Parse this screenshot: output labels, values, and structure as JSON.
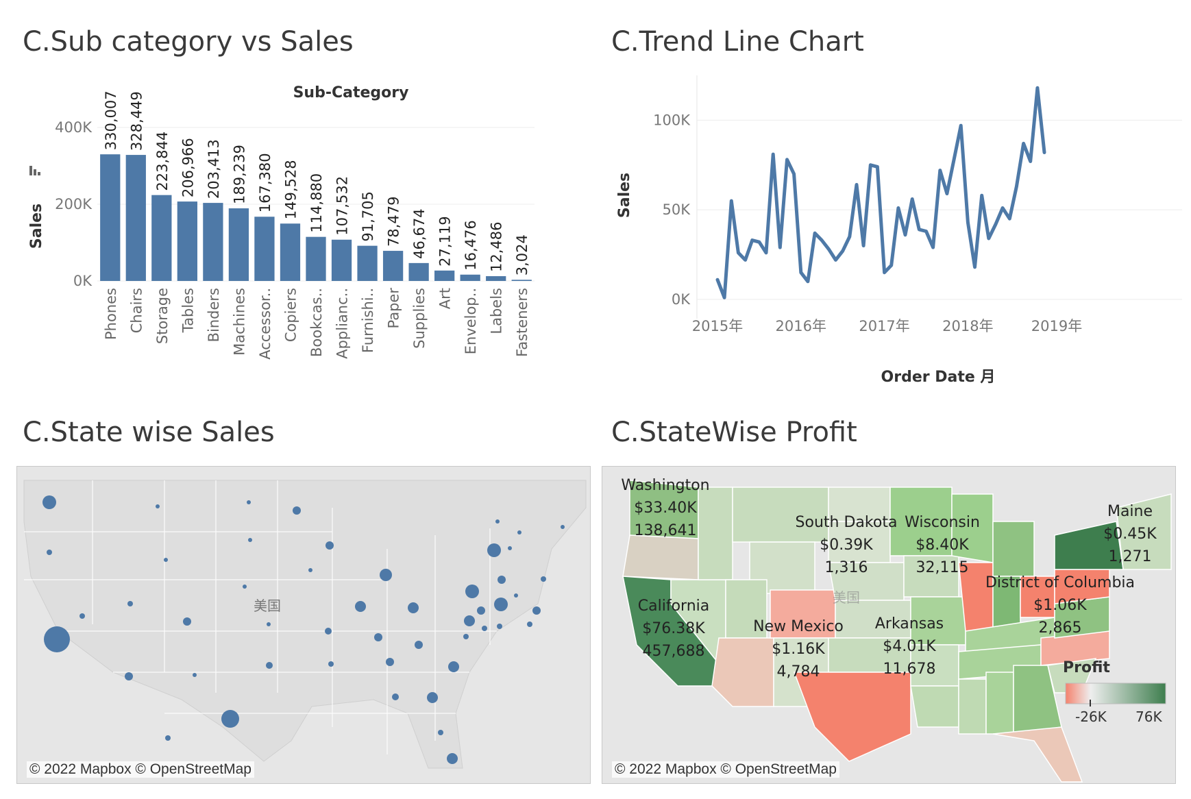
{
  "titles": {
    "bar": "C.Sub category vs Sales",
    "line": "C.Trend Line Chart",
    "salesmap": "C.State wise Sales",
    "profitmap": "C.StateWise Profit"
  },
  "colors": {
    "bar": "#4e79a7",
    "line": "#4e79a7",
    "bubble": "#4e79a7",
    "profit_low": "#f4826d",
    "profit_mid": "#eeeeee",
    "profit_high": "#3e7e4e"
  },
  "chart_data": [
    {
      "type": "bar",
      "title": "Sub-Category",
      "ylabel": "Sales",
      "ylim": [
        0,
        500000
      ],
      "yticks": [
        0,
        200000,
        400000
      ],
      "ytick_labels": [
        "0K",
        "200K",
        "400K"
      ],
      "categories": [
        "Phones",
        "Chairs",
        "Storage",
        "Tables",
        "Binders",
        "Machines",
        "Accessor..",
        "Copiers",
        "Bookcas..",
        "Applianc..",
        "Furnishi..",
        "Paper",
        "Supplies",
        "Art",
        "Envelop..",
        "Labels",
        "Fasteners"
      ],
      "values": [
        330007,
        328449,
        223844,
        206966,
        203413,
        189239,
        167380,
        149528,
        114880,
        107532,
        91705,
        78479,
        46674,
        27119,
        16476,
        12486,
        3024
      ],
      "value_labels": [
        "330,007",
        "328,449",
        "223,844",
        "206,966",
        "203,413",
        "189,239",
        "167,380",
        "149,528",
        "114,880",
        "107,532",
        "91,705",
        "78,479",
        "46,674",
        "27,119",
        "16,476",
        "12,486",
        "3,024"
      ],
      "grid": true
    },
    {
      "type": "line",
      "xlabel": "Order Date 月",
      "ylabel": "Sales",
      "ylim": [
        -5000,
        125000
      ],
      "yticks": [
        0,
        50000,
        100000
      ],
      "ytick_labels": [
        "0K",
        "50K",
        "100K"
      ],
      "xtick_labels": [
        "2015年",
        "2016年",
        "2017年",
        "2018年",
        "2019年"
      ],
      "series": [
        {
          "x": [
            "2015-01",
            "2015-02",
            "2015-03",
            "2015-04",
            "2015-05",
            "2015-06",
            "2015-07",
            "2015-08",
            "2015-09",
            "2015-10",
            "2015-11",
            "2015-12",
            "2016-01",
            "2016-02",
            "2016-03",
            "2016-04",
            "2016-05",
            "2016-06",
            "2016-07",
            "2016-08",
            "2016-09",
            "2016-10",
            "2016-11",
            "2016-12",
            "2017-01",
            "2017-02",
            "2017-03",
            "2017-04",
            "2017-05",
            "2017-06",
            "2017-07",
            "2017-08",
            "2017-09",
            "2017-10",
            "2017-11",
            "2017-12",
            "2018-01",
            "2018-02",
            "2018-03",
            "2018-04",
            "2018-05",
            "2018-06",
            "2018-07",
            "2018-08",
            "2018-09",
            "2018-10",
            "2018-11",
            "2018-12"
          ],
          "values": [
            11000,
            1000,
            55000,
            26000,
            22000,
            33000,
            32000,
            26000,
            81000,
            29000,
            78000,
            70000,
            15000,
            10000,
            37000,
            33000,
            28000,
            22000,
            27000,
            35000,
            64000,
            30000,
            75000,
            74000,
            15000,
            19000,
            51000,
            36000,
            56000,
            39000,
            38000,
            29000,
            72000,
            59000,
            78000,
            97000,
            43000,
            18000,
            58000,
            34000,
            42000,
            51000,
            45000,
            63000,
            87000,
            77000,
            118000,
            82000
          ]
        }
      ],
      "grid": true
    },
    {
      "type": "scatter",
      "title": "C.State wise Sales",
      "note": "proportional symbol map of sales by state"
    }
  ],
  "map_sales": {
    "center_label": "美国",
    "attribution": "© 2022 Mapbox © OpenStreetMap"
  },
  "map_profit": {
    "legend_title": "Profit",
    "legend_ticks": [
      "-26K",
      "76K"
    ],
    "attribution": "© 2022 Mapbox © OpenStreetMap",
    "center_label": "美国",
    "labels": [
      {
        "state": "Washington",
        "profit": "$33.40K",
        "sales": "138,641"
      },
      {
        "state": "South Dakota",
        "profit": "$0.39K",
        "sales": "1,316"
      },
      {
        "state": "Wisconsin",
        "profit": "$8.40K",
        "sales": "32,115"
      },
      {
        "state": "Maine",
        "profit": "$0.45K",
        "sales": "1,271"
      },
      {
        "state": "District of Columbia",
        "profit": "$1.06K",
        "sales": "2,865"
      },
      {
        "state": "California",
        "profit": "$76.38K",
        "sales": "457,688"
      },
      {
        "state": "New Mexico",
        "profit": "$1.16K",
        "sales": "4,784"
      },
      {
        "state": "Arkansas",
        "profit": "$4.01K",
        "sales": "11,678"
      }
    ]
  }
}
